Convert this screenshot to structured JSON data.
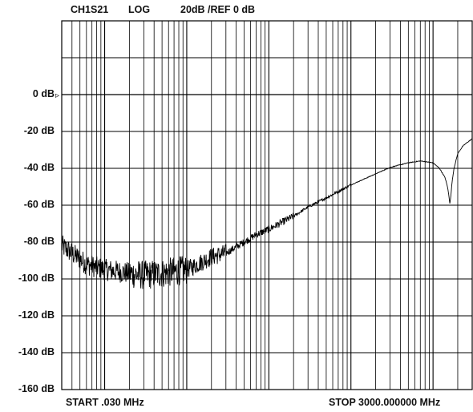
{
  "header": {
    "channel": "CH1",
    "parameter": "S21",
    "format": "LOG",
    "scale": "20dB /REF 0 dB"
  },
  "footer": {
    "start": "START .030 MHz",
    "stop": "STOP  3000.000000 MHz"
  },
  "reference_marker": "▹",
  "chart_data": {
    "type": "line",
    "title": "",
    "xlabel": "",
    "ylabel": "",
    "x_scale": "log",
    "x_unit": "MHz",
    "xlim": [
      0.03,
      3000
    ],
    "ylim": [
      -160,
      40
    ],
    "grid": true,
    "ytick_labels": [
      "0 dB",
      "-20 dB",
      "-40 dB",
      "-60 dB",
      "-80 dB",
      "-100 dB",
      "-120 dB",
      "-140 dB",
      "-160 dB"
    ],
    "ytick_values": [
      0,
      -20,
      -40,
      -60,
      -80,
      -100,
      -120,
      -140,
      -160
    ],
    "reference_level_db": 0,
    "series": [
      {
        "color": "#000000",
        "x": [
          0.03,
          0.04,
          0.06,
          0.1,
          0.15,
          0.2,
          0.3,
          0.5,
          0.7,
          1,
          1.5,
          2,
          3,
          5,
          7,
          10,
          20,
          30,
          50,
          100,
          200,
          300,
          500,
          700,
          1000,
          1200,
          1400,
          1500,
          1550,
          1600,
          1650,
          1700,
          1800,
          2000,
          2300,
          2600,
          3000
        ],
        "y": [
          -82,
          -86,
          -92,
          -95,
          -96,
          -97,
          -98,
          -97,
          -96,
          -95,
          -91,
          -88,
          -86,
          -80,
          -76,
          -73,
          -66,
          -61,
          -56,
          -49,
          -43,
          -39.5,
          -37,
          -36,
          -37,
          -40,
          -45,
          -50,
          -54,
          -59,
          -55,
          -48,
          -40,
          -32,
          -28,
          -26,
          -24
        ]
      }
    ],
    "noise": [
      {
        "x_range": [
          0.03,
          0.2
        ],
        "amplitude_db": 6
      },
      {
        "x_range": [
          0.2,
          1
        ],
        "amplitude_db": 8
      },
      {
        "x_range": [
          1,
          3
        ],
        "amplitude_db": 5
      },
      {
        "x_range": [
          3,
          20
        ],
        "amplitude_db": 2
      },
      {
        "x_range": [
          20,
          100
        ],
        "amplitude_db": 0.8
      }
    ]
  }
}
